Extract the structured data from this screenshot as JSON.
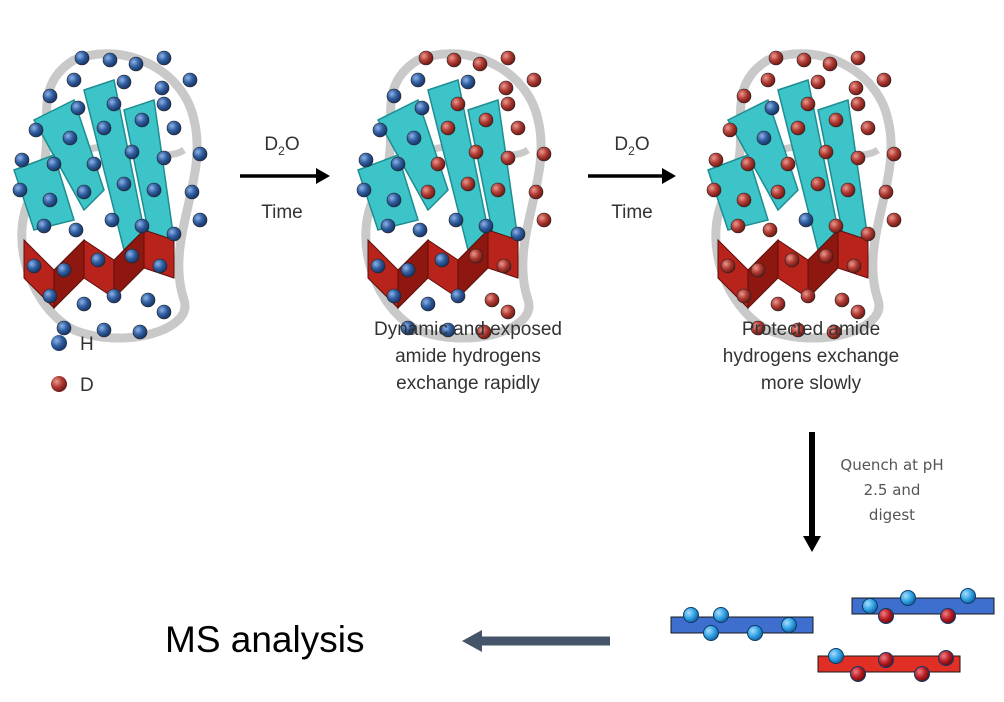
{
  "colors": {
    "H": "#2f5ea0",
    "D": "#b03a32",
    "helix": "#b8231c",
    "sheet": "#3cc4c8",
    "loop": "#c9c9c9",
    "peptide_blue": "#3f6fce",
    "peptide_red": "#e12f26",
    "bead_light": "#2fa3e6",
    "bead_dark": "#b81a22",
    "arrow_left": "#46546a"
  },
  "legend": {
    "h_label": "H",
    "d_label": "D"
  },
  "step1": {
    "reagent_prefix": "D",
    "reagent_sub": "2",
    "reagent_suffix": "O",
    "time": "Time"
  },
  "step2": {
    "reagent_prefix": "D",
    "reagent_sub": "2",
    "reagent_suffix": "O",
    "time": "Time"
  },
  "caption_middle": [
    "Dynamic and exposed",
    "amide hydrogens",
    "exchange rapidly"
  ],
  "caption_right": [
    "Protected amide",
    "hydrogens exchange",
    "more slowly"
  ],
  "quench": [
    "Quench at pH",
    "2.5 and",
    "digest"
  ],
  "ms_label": "MS analysis",
  "icons": [
    "protein-structure-icon",
    "peptide-fragment-icon",
    "arrow-right-icon",
    "arrow-down-icon",
    "arrow-left-icon"
  ]
}
